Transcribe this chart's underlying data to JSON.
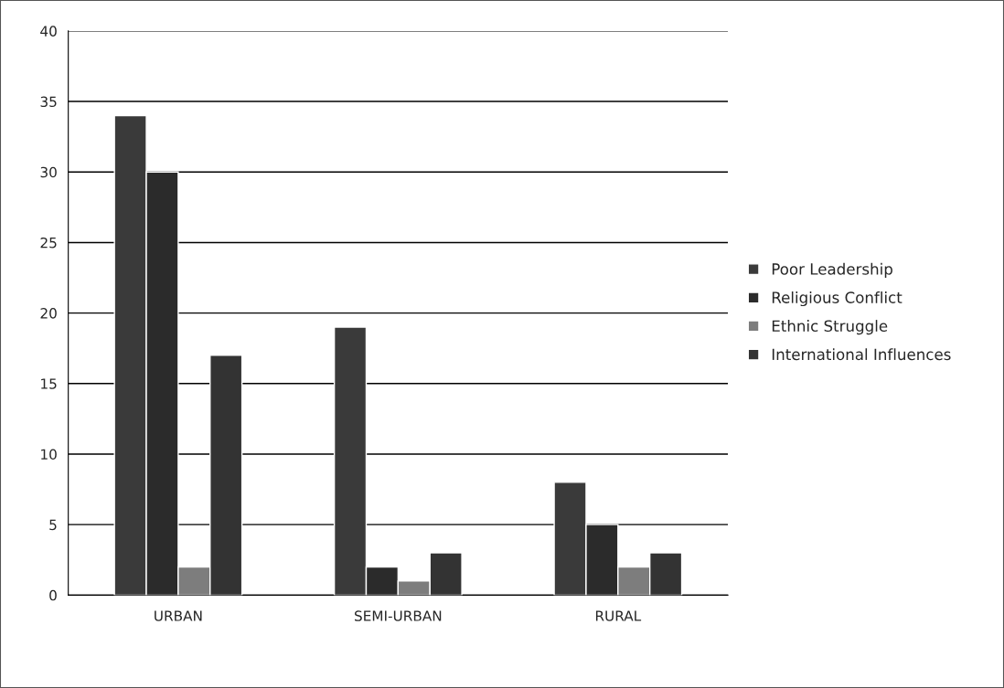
{
  "chart_data": {
    "type": "bar",
    "categories": [
      "URBAN",
      "SEMI-URBAN",
      "RURAL"
    ],
    "series": [
      {
        "name": "Poor Leadership",
        "color": "#3a3a3a",
        "values": [
          34,
          19,
          8
        ]
      },
      {
        "name": "Religious Conflict",
        "color": "#2b2b2b",
        "values": [
          30,
          2,
          5
        ]
      },
      {
        "name": "Ethnic Struggle",
        "color": "#7d7d7d",
        "values": [
          2,
          1,
          2
        ]
      },
      {
        "name": "International Influences",
        "color": "#333333",
        "values": [
          17,
          3,
          3
        ]
      }
    ],
    "ylim": [
      0,
      40
    ],
    "yticks": [
      0,
      5,
      10,
      15,
      20,
      25,
      30,
      35,
      40
    ],
    "grid": "y",
    "legend": "right"
  }
}
